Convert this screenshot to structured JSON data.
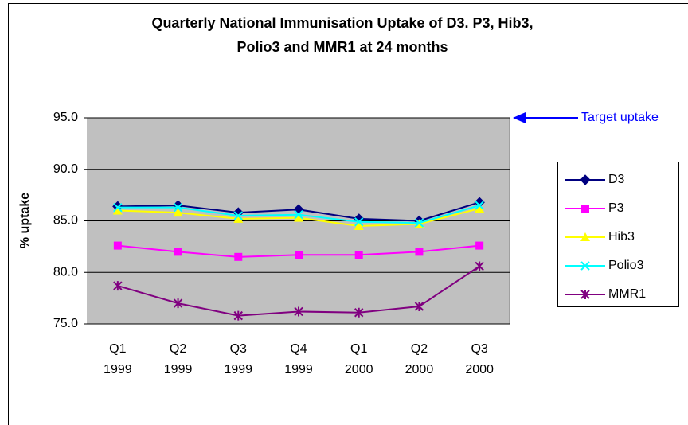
{
  "chart_data": {
    "type": "line",
    "title": [
      "Quarterly National Immunisation Uptake of D3. P3, Hib3,",
      "Polio3 and MMR1 at 24 months"
    ],
    "y_label": "% uptake",
    "annotation": "Target uptake",
    "categories": [
      [
        "Q1",
        "1999"
      ],
      [
        "Q2",
        "1999"
      ],
      [
        "Q3",
        "1999"
      ],
      [
        "Q4",
        "1999"
      ],
      [
        "Q1",
        "2000"
      ],
      [
        "Q2",
        "2000"
      ],
      [
        "Q3",
        "2000"
      ]
    ],
    "series": [
      {
        "name": "D3",
        "color": "#000080",
        "marker": "diamond",
        "values": [
          86.4,
          86.5,
          85.8,
          86.1,
          85.2,
          85.0,
          86.8
        ]
      },
      {
        "name": "P3",
        "color": "#FF00FF",
        "marker": "square",
        "values": [
          82.6,
          82.0,
          81.5,
          81.7,
          81.7,
          82.0,
          82.6
        ]
      },
      {
        "name": "Hib3",
        "color": "#FFFF00",
        "marker": "triangle",
        "values": [
          86.0,
          85.8,
          85.2,
          85.3,
          84.5,
          84.7,
          86.2
        ]
      },
      {
        "name": "Polio3",
        "color": "#00FFFF",
        "marker": "x",
        "values": [
          86.3,
          86.3,
          85.5,
          85.6,
          84.9,
          84.8,
          86.5
        ]
      },
      {
        "name": "MMR1",
        "color": "#800080",
        "marker": "star",
        "values": [
          78.7,
          77.0,
          75.8,
          76.2,
          76.1,
          76.7,
          80.6
        ]
      }
    ],
    "ylim": [
      75,
      95
    ],
    "yticks": [
      {
        "value": 75,
        "label": "75.0"
      },
      {
        "value": 80,
        "label": "80.0"
      },
      {
        "value": 85,
        "label": "85.0"
      },
      {
        "value": 90,
        "label": "90.0"
      },
      {
        "value": 95,
        "label": "95.0"
      }
    ],
    "grid": true,
    "legend": "right"
  }
}
